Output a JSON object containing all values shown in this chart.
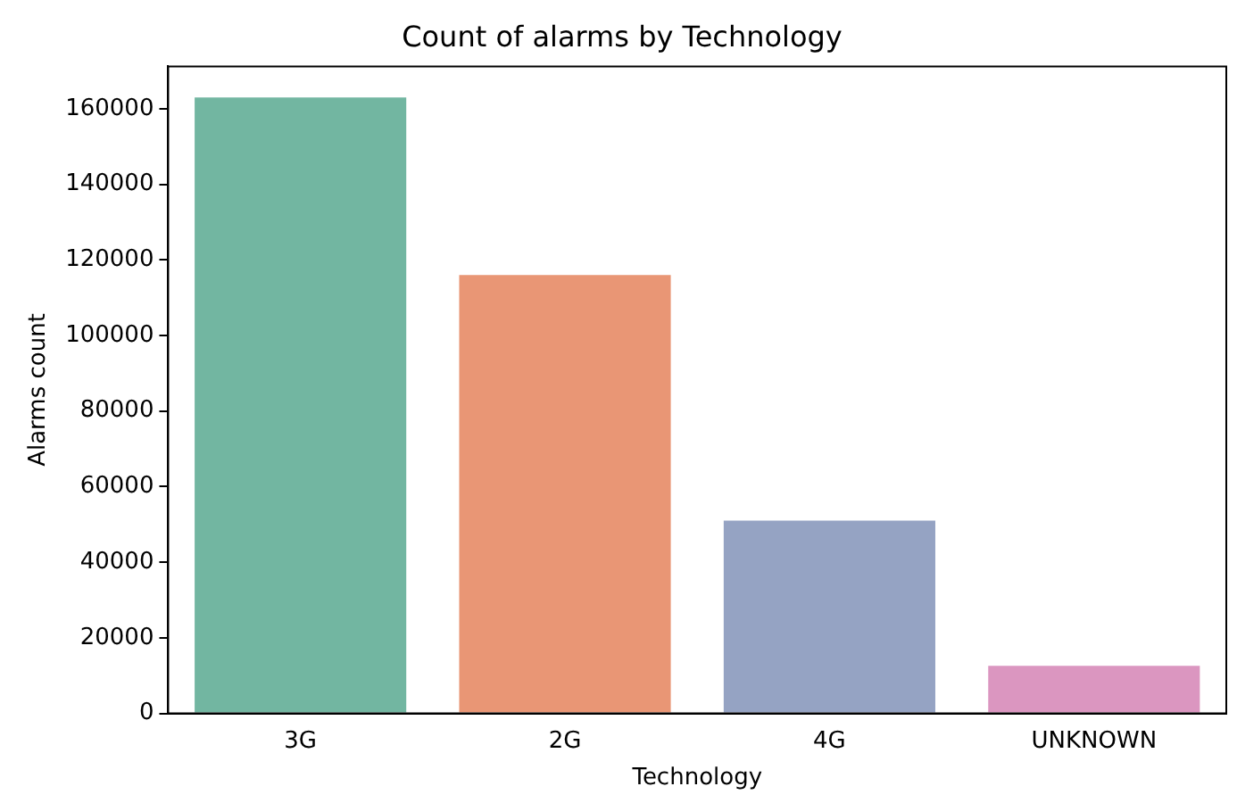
{
  "chart_data": {
    "type": "bar",
    "title": "Count of alarms by Technology",
    "xlabel": "Technology",
    "ylabel": "Alarms count",
    "categories": [
      "3G",
      "2G",
      "4G",
      "UNKNOWN"
    ],
    "values": [
      163000,
      116000,
      51000,
      12600
    ],
    "colors": [
      "#72b6a1",
      "#e99675",
      "#95a3c3",
      "#db96c0"
    ],
    "ylim": [
      0,
      171200
    ],
    "yticks": [
      0,
      20000,
      40000,
      60000,
      80000,
      100000,
      120000,
      140000,
      160000
    ],
    "grid": false,
    "legend": false
  }
}
